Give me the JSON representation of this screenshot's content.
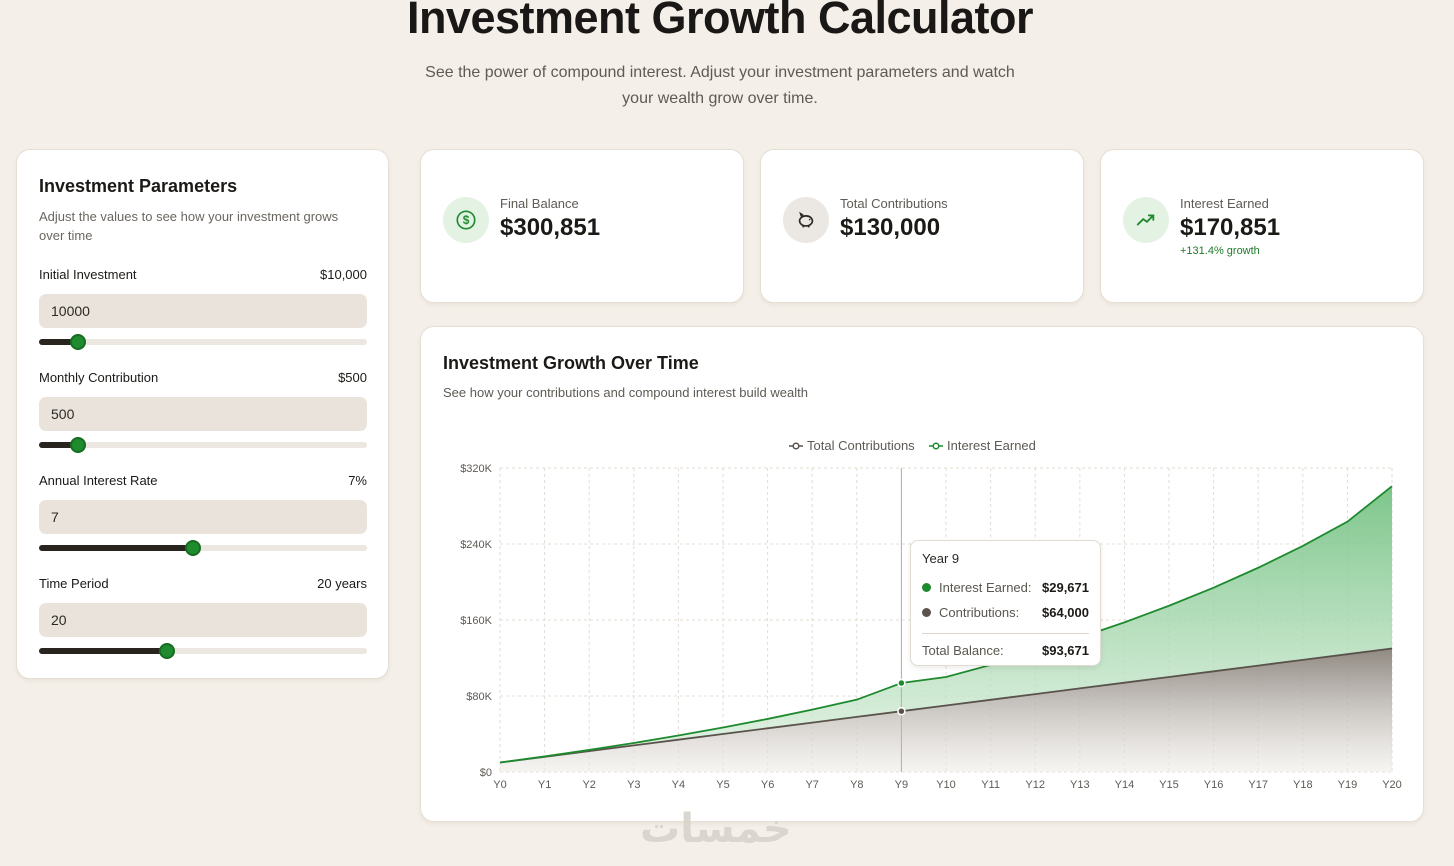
{
  "header": {
    "title": "Investment Growth Calculator",
    "subtitle": "See the power of compound interest. Adjust your investment parameters and watch your wealth grow over time."
  },
  "params": {
    "title": "Investment Parameters",
    "description": "Adjust the values to see how your investment grows over time",
    "fields": [
      {
        "label": "Initial Investment",
        "display": "$10,000",
        "value": "10000",
        "slider_fraction": 0.12
      },
      {
        "label": "Monthly Contribution",
        "display": "$500",
        "value": "500",
        "slider_fraction": 0.12
      },
      {
        "label": "Annual Interest Rate",
        "display": "7%",
        "value": "7",
        "slider_fraction": 0.47
      },
      {
        "label": "Time Period",
        "display": "20 years",
        "value": "20",
        "slider_fraction": 0.39
      }
    ]
  },
  "stats": [
    {
      "label": "Final Balance",
      "value": "$300,851",
      "icon": "dollar-circle-icon",
      "icon_bg": "#e4f2e4"
    },
    {
      "label": "Total Contributions",
      "value": "$130,000",
      "icon": "piggy-bank-icon",
      "icon_bg": "#ebe7e2"
    },
    {
      "label": "Interest Earned",
      "value": "$170,851",
      "growth": "+131.4% growth",
      "icon": "trending-up-icon",
      "icon_bg": "#e4f2e4"
    }
  ],
  "chart": {
    "title": "Investment Growth Over Time",
    "subtitle": "See how your contributions and compound interest build wealth",
    "tooltip": {
      "title": "Year 9",
      "interest_label": "Interest Earned:",
      "interest_value": "$29,671",
      "contrib_label": "Contributions:",
      "contrib_value": "$64,000",
      "total_label": "Total Balance:",
      "total_value": "$93,671"
    }
  },
  "chart_data": {
    "type": "area",
    "title": "Investment Growth Over Time",
    "categories": [
      "Y0",
      "Y1",
      "Y2",
      "Y3",
      "Y4",
      "Y5",
      "Y6",
      "Y7",
      "Y8",
      "Y9",
      "Y10",
      "Y11",
      "Y12",
      "Y13",
      "Y14",
      "Y15",
      "Y16",
      "Y17",
      "Y18",
      "Y19",
      "Y20"
    ],
    "y_ticks": [
      "$0",
      "$80K",
      "$160K",
      "$240K",
      "$320K"
    ],
    "ylim": [
      0,
      320000
    ],
    "stacked": true,
    "legend": "top-center",
    "grid": true,
    "highlight_index": 9,
    "series": [
      {
        "name": "Total Contributions",
        "color": "#5a534c",
        "values": [
          10000,
          16000,
          22000,
          28000,
          34000,
          40000,
          46000,
          52000,
          58000,
          64000,
          70000,
          76000,
          82000,
          88000,
          94000,
          100000,
          106000,
          112000,
          118000,
          124000,
          130000
        ]
      },
      {
        "name": "Interest Earned",
        "color": "#1e8a2e",
        "values": [
          0,
          393,
          1222,
          2533,
          4375,
          6805,
          9860,
          13613,
          18117,
          29671,
          30000,
          36700,
          44500,
          53500,
          63500,
          75000,
          88000,
          103000,
          120000,
          139500,
          170851
        ]
      }
    ]
  },
  "watermark": "خمسات"
}
